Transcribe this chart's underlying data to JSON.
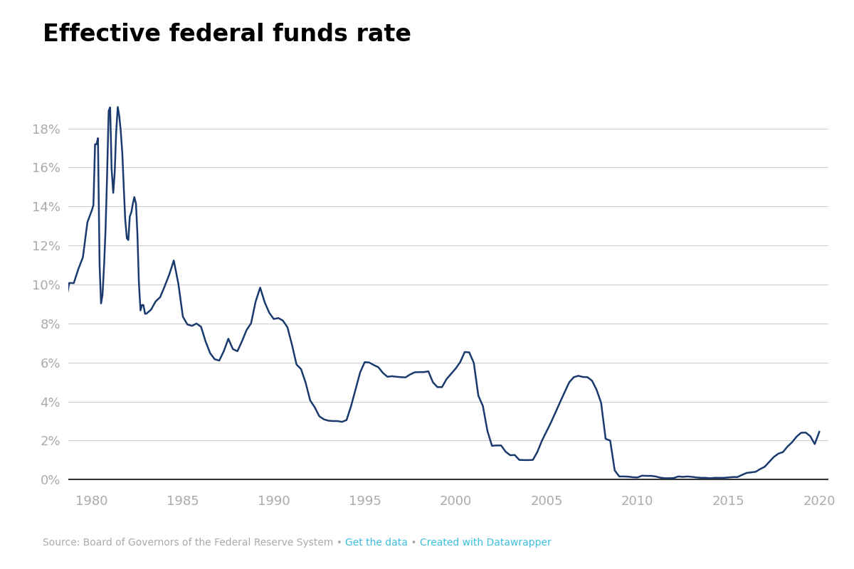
{
  "title": "Effective federal funds rate",
  "title_fontsize": 24,
  "title_fontweight": "bold",
  "line_color": "#1a3a6e",
  "line_width": 1.8,
  "background_color": "#ffffff",
  "grid_color": "#cccccc",
  "axis_label_color": "#aaaaaa",
  "source_text": "Source: Board of Governors of the Federal Reserve System • ",
  "link1_text": "Get the data",
  "link1_color": "#3bbfde",
  "link2_text": " • ",
  "link3_text": "Created with Datawrapper",
  "link3_color": "#3bbfde",
  "ylim": [
    -0.5,
    20.5
  ],
  "yticks": [
    0,
    2,
    4,
    6,
    8,
    10,
    12,
    14,
    16,
    18
  ],
  "xticks": [
    1980,
    1985,
    1990,
    1995,
    2000,
    2005,
    2010,
    2015,
    2020
  ],
  "xlim": [
    1978.7,
    2020.5
  ],
  "data": [
    [
      1978.0,
      7.94
    ],
    [
      1978.25,
      8.68
    ],
    [
      1978.5,
      8.8
    ],
    [
      1978.75,
      10.08
    ],
    [
      1979.0,
      10.07
    ],
    [
      1979.25,
      10.79
    ],
    [
      1979.5,
      11.39
    ],
    [
      1979.75,
      13.19
    ],
    [
      1980.0,
      13.82
    ],
    [
      1980.08,
      14.07
    ],
    [
      1980.17,
      17.19
    ],
    [
      1980.25,
      17.19
    ],
    [
      1980.33,
      17.5
    ],
    [
      1980.42,
      10.98
    ],
    [
      1980.5,
      9.03
    ],
    [
      1980.58,
      9.47
    ],
    [
      1980.67,
      11.04
    ],
    [
      1980.75,
      12.89
    ],
    [
      1980.83,
      15.53
    ],
    [
      1980.92,
      18.9
    ],
    [
      1981.0,
      19.08
    ],
    [
      1981.08,
      15.93
    ],
    [
      1981.17,
      14.7
    ],
    [
      1981.25,
      15.72
    ],
    [
      1981.33,
      17.78
    ],
    [
      1981.42,
      19.1
    ],
    [
      1981.5,
      18.65
    ],
    [
      1981.58,
      17.91
    ],
    [
      1981.67,
      16.72
    ],
    [
      1981.75,
      14.96
    ],
    [
      1981.83,
      13.32
    ],
    [
      1981.92,
      12.37
    ],
    [
      1982.0,
      12.28
    ],
    [
      1982.08,
      13.48
    ],
    [
      1982.17,
      13.72
    ],
    [
      1982.25,
      14.15
    ],
    [
      1982.33,
      14.48
    ],
    [
      1982.42,
      14.15
    ],
    [
      1982.5,
      12.59
    ],
    [
      1982.58,
      10.12
    ],
    [
      1982.67,
      8.67
    ],
    [
      1982.75,
      8.95
    ],
    [
      1982.83,
      8.95
    ],
    [
      1982.92,
      8.5
    ],
    [
      1983.0,
      8.51
    ],
    [
      1983.25,
      8.71
    ],
    [
      1983.5,
      9.13
    ],
    [
      1983.75,
      9.35
    ],
    [
      1984.0,
      9.91
    ],
    [
      1984.25,
      10.51
    ],
    [
      1984.5,
      11.23
    ],
    [
      1984.75,
      10.05
    ],
    [
      1985.0,
      8.35
    ],
    [
      1985.25,
      7.95
    ],
    [
      1985.5,
      7.88
    ],
    [
      1985.75,
      8.0
    ],
    [
      1986.0,
      7.83
    ],
    [
      1986.25,
      7.08
    ],
    [
      1986.5,
      6.48
    ],
    [
      1986.75,
      6.17
    ],
    [
      1987.0,
      6.1
    ],
    [
      1987.25,
      6.58
    ],
    [
      1987.5,
      7.22
    ],
    [
      1987.75,
      6.69
    ],
    [
      1988.0,
      6.58
    ],
    [
      1988.25,
      7.09
    ],
    [
      1988.5,
      7.66
    ],
    [
      1988.75,
      8.01
    ],
    [
      1989.0,
      9.12
    ],
    [
      1989.25,
      9.84
    ],
    [
      1989.5,
      9.09
    ],
    [
      1989.75,
      8.55
    ],
    [
      1990.0,
      8.23
    ],
    [
      1990.25,
      8.28
    ],
    [
      1990.5,
      8.15
    ],
    [
      1990.75,
      7.81
    ],
    [
      1991.0,
      6.91
    ],
    [
      1991.25,
      5.9
    ],
    [
      1991.5,
      5.66
    ],
    [
      1991.75,
      4.97
    ],
    [
      1992.0,
      4.06
    ],
    [
      1992.25,
      3.71
    ],
    [
      1992.5,
      3.25
    ],
    [
      1992.75,
      3.09
    ],
    [
      1993.0,
      3.02
    ],
    [
      1993.25,
      3.0
    ],
    [
      1993.5,
      3.0
    ],
    [
      1993.75,
      2.96
    ],
    [
      1994.0,
      3.05
    ],
    [
      1994.25,
      3.77
    ],
    [
      1994.5,
      4.64
    ],
    [
      1994.75,
      5.5
    ],
    [
      1995.0,
      6.02
    ],
    [
      1995.25,
      6.0
    ],
    [
      1995.5,
      5.87
    ],
    [
      1995.75,
      5.76
    ],
    [
      1996.0,
      5.47
    ],
    [
      1996.25,
      5.27
    ],
    [
      1996.5,
      5.3
    ],
    [
      1996.75,
      5.27
    ],
    [
      1997.0,
      5.25
    ],
    [
      1997.25,
      5.24
    ],
    [
      1997.5,
      5.39
    ],
    [
      1997.75,
      5.5
    ],
    [
      1998.0,
      5.51
    ],
    [
      1998.25,
      5.51
    ],
    [
      1998.5,
      5.55
    ],
    [
      1998.75,
      4.99
    ],
    [
      1999.0,
      4.74
    ],
    [
      1999.25,
      4.74
    ],
    [
      1999.5,
      5.15
    ],
    [
      1999.75,
      5.42
    ],
    [
      2000.0,
      5.69
    ],
    [
      2000.25,
      6.02
    ],
    [
      2000.5,
      6.54
    ],
    [
      2000.75,
      6.52
    ],
    [
      2001.0,
      5.98
    ],
    [
      2001.25,
      4.3
    ],
    [
      2001.5,
      3.77
    ],
    [
      2001.75,
      2.49
    ],
    [
      2002.0,
      1.73
    ],
    [
      2002.25,
      1.75
    ],
    [
      2002.5,
      1.75
    ],
    [
      2002.75,
      1.43
    ],
    [
      2003.0,
      1.25
    ],
    [
      2003.25,
      1.26
    ],
    [
      2003.5,
      1.01
    ],
    [
      2003.75,
      1.0
    ],
    [
      2004.0,
      1.0
    ],
    [
      2004.25,
      1.01
    ],
    [
      2004.5,
      1.43
    ],
    [
      2004.75,
      2.0
    ],
    [
      2005.0,
      2.47
    ],
    [
      2005.25,
      2.94
    ],
    [
      2005.5,
      3.46
    ],
    [
      2005.75,
      3.98
    ],
    [
      2006.0,
      4.49
    ],
    [
      2006.25,
      4.99
    ],
    [
      2006.5,
      5.25
    ],
    [
      2006.75,
      5.32
    ],
    [
      2007.0,
      5.26
    ],
    [
      2007.25,
      5.25
    ],
    [
      2007.5,
      5.07
    ],
    [
      2007.75,
      4.61
    ],
    [
      2008.0,
      3.94
    ],
    [
      2008.25,
      2.09
    ],
    [
      2008.5,
      2.0
    ],
    [
      2008.75,
      0.47
    ],
    [
      2009.0,
      0.16
    ],
    [
      2009.25,
      0.16
    ],
    [
      2009.5,
      0.15
    ],
    [
      2009.75,
      0.12
    ],
    [
      2010.0,
      0.11
    ],
    [
      2010.25,
      0.2
    ],
    [
      2010.5,
      0.19
    ],
    [
      2010.75,
      0.19
    ],
    [
      2011.0,
      0.16
    ],
    [
      2011.25,
      0.1
    ],
    [
      2011.5,
      0.07
    ],
    [
      2011.75,
      0.07
    ],
    [
      2012.0,
      0.08
    ],
    [
      2012.25,
      0.16
    ],
    [
      2012.5,
      0.14
    ],
    [
      2012.75,
      0.16
    ],
    [
      2013.0,
      0.14
    ],
    [
      2013.25,
      0.11
    ],
    [
      2013.5,
      0.09
    ],
    [
      2013.75,
      0.09
    ],
    [
      2014.0,
      0.07
    ],
    [
      2014.25,
      0.09
    ],
    [
      2014.5,
      0.09
    ],
    [
      2014.75,
      0.09
    ],
    [
      2015.0,
      0.11
    ],
    [
      2015.25,
      0.13
    ],
    [
      2015.5,
      0.13
    ],
    [
      2015.75,
      0.24
    ],
    [
      2016.0,
      0.34
    ],
    [
      2016.25,
      0.37
    ],
    [
      2016.5,
      0.4
    ],
    [
      2016.75,
      0.54
    ],
    [
      2017.0,
      0.66
    ],
    [
      2017.25,
      0.91
    ],
    [
      2017.5,
      1.16
    ],
    [
      2017.75,
      1.33
    ],
    [
      2018.0,
      1.41
    ],
    [
      2018.25,
      1.69
    ],
    [
      2018.5,
      1.91
    ],
    [
      2018.75,
      2.2
    ],
    [
      2019.0,
      2.4
    ],
    [
      2019.25,
      2.41
    ],
    [
      2019.5,
      2.23
    ],
    [
      2019.75,
      1.82
    ],
    [
      2020.0,
      2.45
    ]
  ]
}
